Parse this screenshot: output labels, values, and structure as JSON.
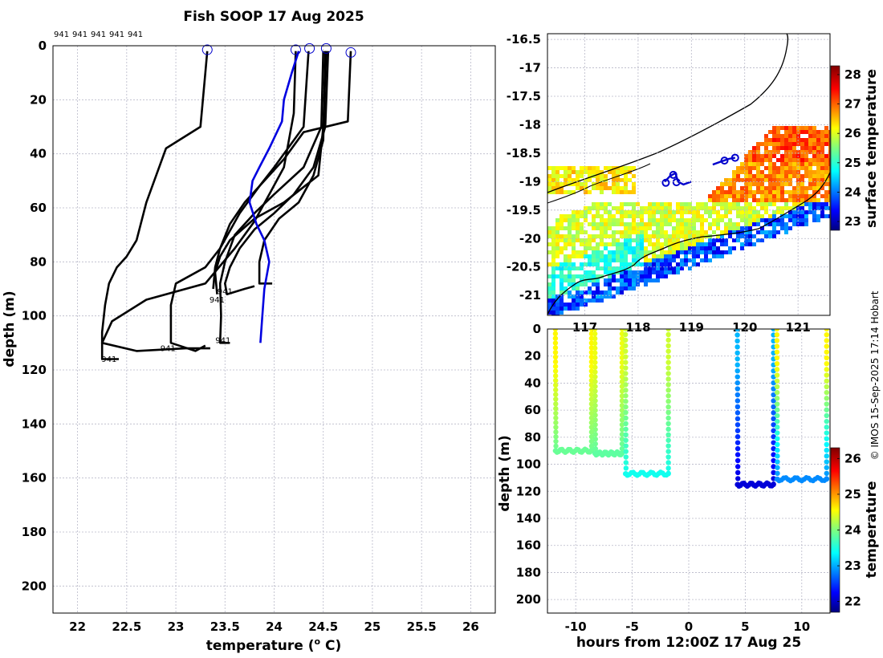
{
  "title": "Fish SOOP 17 Aug 2025",
  "credit": "© IMOS 15-Sep-2025 17:14 Hobart",
  "top_ids": [
    "941",
    "941",
    "941",
    "941",
    "941"
  ],
  "chart_data": [
    {
      "type": "line",
      "name": "temperature-profiles",
      "xlabel": "temperature (",
      "xlabel_unit": "o",
      "xlabel_tail": " C)",
      "ylabel": "depth (m)",
      "xlim": [
        21.75,
        26.25
      ],
      "ylim": [
        0,
        210
      ],
      "xticks": [
        "22",
        "22.5",
        "23",
        "23.5",
        "24",
        "24.5",
        "25",
        "25.5",
        "26"
      ],
      "yticks": [
        "0",
        "20",
        "40",
        "60",
        "80",
        "100",
        "120",
        "140",
        "160",
        "180",
        "200"
      ],
      "series": [
        {
          "name": "profile-1",
          "color": "#000000",
          "points": [
            [
              23.32,
              2
            ],
            [
              23.3,
              10
            ],
            [
              23.25,
              30
            ],
            [
              22.9,
              38
            ],
            [
              22.7,
              58
            ],
            [
              22.6,
              72
            ],
            [
              22.5,
              78
            ],
            [
              22.4,
              82
            ],
            [
              22.32,
              88
            ],
            [
              22.28,
              96
            ],
            [
              22.25,
              106
            ],
            [
              22.25,
              116
            ],
            [
              22.42,
              116
            ]
          ]
        },
        {
          "name": "profile-2",
          "color": "#000000",
          "points": [
            [
              24.22,
              2
            ],
            [
              24.2,
              25
            ],
            [
              24.1,
              45
            ],
            [
              23.95,
              55
            ],
            [
              23.8,
              65
            ],
            [
              23.6,
              75
            ],
            [
              23.3,
              88
            ],
            [
              22.7,
              94
            ],
            [
              22.35,
              102
            ],
            [
              22.25,
              110
            ],
            [
              22.6,
              113
            ],
            [
              23.1,
              112
            ],
            [
              23.35,
              112
            ]
          ]
        },
        {
          "name": "profile-3",
          "color": "#000000",
          "points": [
            [
              24.35,
              2
            ],
            [
              24.3,
              30
            ],
            [
              24.0,
              45
            ],
            [
              23.85,
              52
            ],
            [
              23.65,
              62
            ],
            [
              23.45,
              75
            ],
            [
              23.3,
              82
            ],
            [
              23.0,
              88
            ],
            [
              22.95,
              96
            ],
            [
              22.95,
              110
            ],
            [
              23.2,
              113
            ],
            [
              23.3,
              111
            ]
          ]
        },
        {
          "name": "profile-4",
          "color": "#000000",
          "points": [
            [
              24.5,
              2
            ],
            [
              24.48,
              30
            ],
            [
              24.3,
              45
            ],
            [
              24.0,
              55
            ],
            [
              23.8,
              62
            ],
            [
              23.6,
              70
            ],
            [
              23.5,
              80
            ],
            [
              23.45,
              88
            ],
            [
              23.46,
              100
            ],
            [
              23.45,
              110
            ],
            [
              23.55,
              110
            ]
          ]
        },
        {
          "name": "profile-5",
          "color": "#000000",
          "points": [
            [
              24.55,
              2
            ],
            [
              24.52,
              30
            ],
            [
              24.4,
              45
            ],
            [
              24.2,
              55
            ],
            [
              24.0,
              62
            ],
            [
              23.8,
              68
            ],
            [
              23.65,
              75
            ],
            [
              23.55,
              82
            ],
            [
              23.5,
              88
            ],
            [
              23.52,
              92
            ],
            [
              23.7,
              90
            ],
            [
              23.8,
              89
            ]
          ]
        },
        {
          "name": "profile-6",
          "color": "#000000",
          "points": [
            [
              24.52,
              2
            ],
            [
              24.5,
              35
            ],
            [
              24.4,
              48
            ],
            [
              24.25,
              58
            ],
            [
              24.05,
              64
            ],
            [
              23.9,
              72
            ],
            [
              23.85,
              80
            ],
            [
              23.85,
              88
            ],
            [
              23.98,
              88
            ]
          ]
        },
        {
          "name": "profile-7",
          "color": "#000000",
          "points": [
            [
              24.78,
              2
            ],
            [
              24.75,
              28
            ],
            [
              24.3,
              32
            ],
            [
              24.1,
              42
            ],
            [
              23.9,
              50
            ],
            [
              23.7,
              58
            ],
            [
              23.55,
              66
            ],
            [
              23.45,
              75
            ],
            [
              23.4,
              82
            ],
            [
              23.38,
              90
            ]
          ]
        },
        {
          "name": "profile-8",
          "color": "#000000",
          "points": [
            [
              24.53,
              2
            ],
            [
              24.5,
              30
            ],
            [
              24.45,
              48
            ],
            [
              24.1,
              58
            ],
            [
              23.8,
              64
            ],
            [
              23.55,
              72
            ],
            [
              23.45,
              78
            ],
            [
              23.4,
              84
            ],
            [
              23.42,
              92
            ]
          ]
        },
        {
          "name": "profile-blue",
          "color": "#0000e0",
          "points": [
            [
              24.25,
              2
            ],
            [
              24.18,
              10
            ],
            [
              24.1,
              20
            ],
            [
              24.08,
              28
            ],
            [
              23.95,
              38
            ],
            [
              23.85,
              45
            ],
            [
              23.78,
              50
            ],
            [
              23.75,
              58
            ],
            [
              23.82,
              66
            ],
            [
              23.9,
              72
            ],
            [
              23.95,
              80
            ],
            [
              23.9,
              90
            ],
            [
              23.88,
              100
            ],
            [
              23.86,
              110
            ]
          ]
        }
      ],
      "surface_markers": [
        {
          "t": 23.32,
          "d": 1.5
        },
        {
          "t": 24.22,
          "d": 1.5
        },
        {
          "t": 24.36,
          "d": 1
        },
        {
          "t": 24.53,
          "d": 1
        },
        {
          "t": 24.78,
          "d": 2.5
        }
      ],
      "end_labels": [
        {
          "text": "941",
          "t": 22.32,
          "d": 117
        },
        {
          "text": "941",
          "t": 22.92,
          "d": 113
        },
        {
          "text": "941",
          "t": 23.5,
          "d": 92
        },
        {
          "text": "941",
          "t": 23.42,
          "d": 95
        },
        {
          "text": "941",
          "t": 23.48,
          "d": 110
        }
      ]
    },
    {
      "type": "heatmap",
      "name": "surface-temperature-map",
      "colorbar_label": "surface temperature",
      "xlim": [
        116.3,
        121.6
      ],
      "ylim": [
        -21.35,
        -16.4
      ],
      "xticks": [
        "117",
        "118",
        "119",
        "120",
        "121"
      ],
      "yticks": [
        "-16.5",
        "-17",
        "-17.5",
        "-18",
        "-18.5",
        "-19",
        "-19.5",
        "-20",
        "-20.5",
        "-21"
      ],
      "colorbar_ticks": [
        "23",
        "24",
        "25",
        "26",
        "27",
        "28"
      ],
      "colorbar_range": [
        22.7,
        28.3
      ],
      "track": [
        [
          118.5,
          -19.0
        ],
        [
          118.6,
          -18.9
        ],
        [
          118.7,
          -18.85
        ],
        [
          118.75,
          -19.0
        ],
        [
          118.85,
          -19.05
        ],
        [
          119.0,
          -19.0
        ]
      ],
      "track2": [
        [
          119.4,
          -18.7
        ],
        [
          119.55,
          -18.65
        ],
        [
          119.7,
          -18.6
        ],
        [
          119.82,
          -18.58
        ]
      ]
    },
    {
      "type": "scatter",
      "name": "depth-time-section",
      "xlabel": "hours from 12:00Z 17 Aug 25",
      "ylabel": "depth (m)",
      "colorbar_label": "temperature",
      "xlim": [
        -12.5,
        12.5
      ],
      "ylim": [
        0,
        210
      ],
      "xticks": [
        "-10",
        "-5",
        "0",
        "5",
        "10"
      ],
      "yticks": [
        "0",
        "20",
        "40",
        "60",
        "80",
        "100",
        "120",
        "140",
        "160",
        "180",
        "200"
      ],
      "colorbar_ticks": [
        "22",
        "23",
        "24",
        "25",
        "26"
      ],
      "colorbar_range": [
        21.7,
        26.3
      ],
      "casts": [
        {
          "t0": -11.8,
          "t1": -8.6,
          "bottom": 90,
          "surf": 24.6,
          "bot": 23.9
        },
        {
          "t0": -8.3,
          "t1": -5.9,
          "bottom": 92,
          "surf": 24.5,
          "bot": 23.85
        },
        {
          "t0": -5.6,
          "t1": -1.8,
          "bottom": 107,
          "surf": 24.35,
          "bot": 23.5
        },
        {
          "t0": 4.3,
          "t1": 7.5,
          "bottom": 115,
          "surf": 23.1,
          "bot": 22.1
        },
        {
          "t0": 7.8,
          "t1": 12.2,
          "bottom": 111,
          "surf": 24.6,
          "bot": 22.9
        }
      ]
    }
  ]
}
